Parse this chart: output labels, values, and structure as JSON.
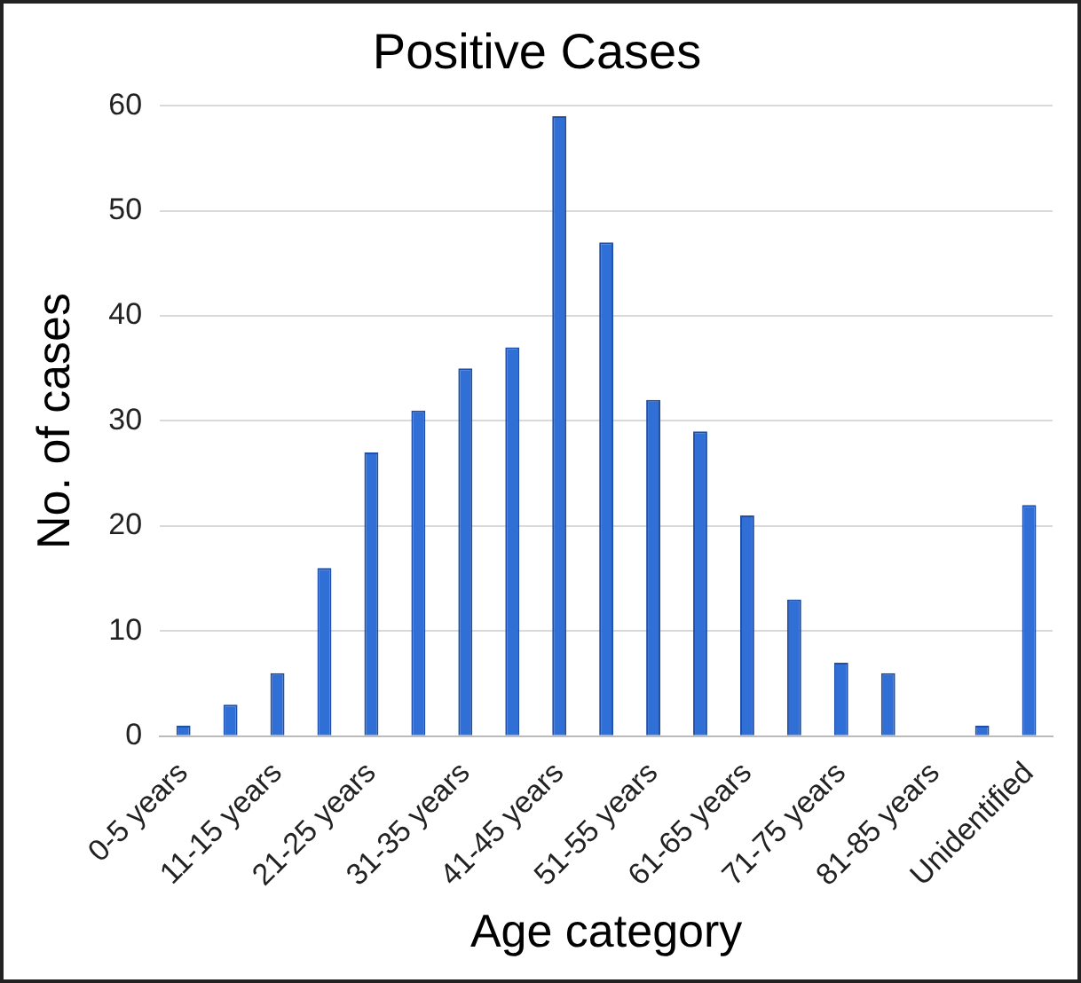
{
  "chart_data": {
    "type": "bar",
    "title": "Positive Cases",
    "xlabel": "Age category",
    "ylabel": "No. of cases",
    "categories": [
      "0-5 years",
      null,
      "11-15 years",
      null,
      "21-25 years",
      null,
      "31-35 years",
      null,
      "41-45 years",
      null,
      "51-55 years",
      null,
      "61-65 years",
      null,
      "71-75 years",
      null,
      "81-85 years",
      null,
      "Unidentified"
    ],
    "values": [
      1,
      3,
      6,
      16,
      27,
      31,
      35,
      37,
      59,
      47,
      32,
      29,
      21,
      13,
      7,
      6,
      0,
      1,
      22
    ],
    "color": "#2f6fd6",
    "ylim": [
      0,
      60
    ],
    "yticks": [
      0,
      10,
      20,
      30,
      40,
      50,
      60
    ],
    "grid": "y",
    "legend": false
  }
}
